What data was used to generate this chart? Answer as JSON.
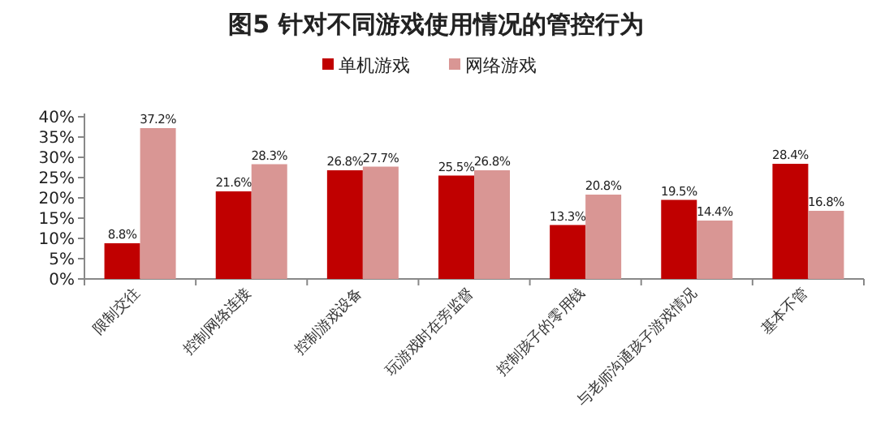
{
  "chart_data": {
    "type": "bar",
    "title": "图5  针对不同游戏使用情况的管控行为",
    "categories": [
      "限制交往",
      "控制网络连接",
      "控制游戏设备",
      "玩游戏时在旁监督",
      "控制孩子的零用钱",
      "与老师沟通孩子游戏情况",
      "基本不管"
    ],
    "series": [
      {
        "name": "单机游戏",
        "color": "#c00000",
        "values": [
          8.8,
          21.6,
          26.8,
          25.5,
          13.3,
          19.5,
          28.4
        ],
        "value_labels": [
          "8.8%",
          "21.6%",
          "26.8%",
          "25.5%",
          "13.3%",
          "19.5%",
          "28.4%"
        ]
      },
      {
        "name": "网络游戏",
        "color": "#d99694",
        "values": [
          37.2,
          28.3,
          27.7,
          26.8,
          20.8,
          14.4,
          16.8
        ],
        "value_labels": [
          "37.2%",
          "28.3%",
          "27.7%",
          "26.8%",
          "20.8%",
          "14.4%",
          "16.8%"
        ]
      }
    ],
    "ylim": [
      0,
      40
    ],
    "yticks": [
      {
        "value": 0,
        "label": "0%"
      },
      {
        "value": 5,
        "label": "5%"
      },
      {
        "value": 10,
        "label": "10%"
      },
      {
        "value": 15,
        "label": "15%"
      },
      {
        "value": 20,
        "label": "20%"
      },
      {
        "value": 25,
        "label": "25%"
      },
      {
        "value": 30,
        "label": "30%"
      },
      {
        "value": 35,
        "label": "35%"
      },
      {
        "value": 40,
        "label": "40%"
      }
    ],
    "legend": "top"
  }
}
